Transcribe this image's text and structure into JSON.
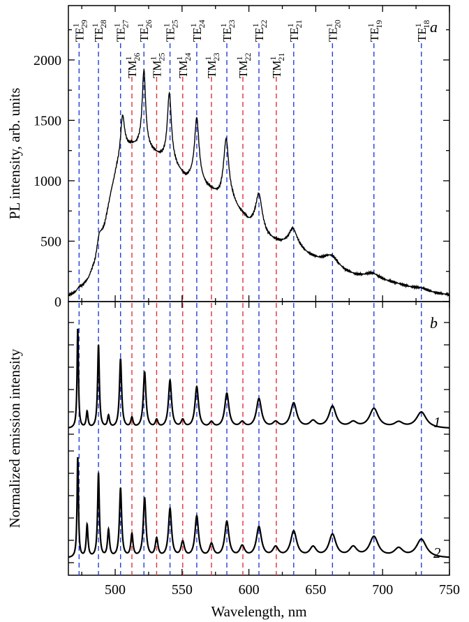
{
  "chart_data": [
    {
      "panel": "a",
      "type": "line",
      "xlabel": "Wavelength, nm",
      "ylabel": "PL intensity, arb. units",
      "xlim": [
        465,
        750
      ],
      "ylim": [
        0,
        2450
      ],
      "yticks": [
        0,
        500,
        1000,
        1500,
        2000
      ],
      "grid": false,
      "background": [
        [
          465,
          50
        ],
        [
          470,
          70
        ],
        [
          475,
          120
        ],
        [
          480,
          190
        ],
        [
          485,
          330
        ],
        [
          488,
          500
        ],
        [
          492,
          620
        ],
        [
          497,
          900
        ],
        [
          501,
          1080
        ],
        [
          504,
          1160
        ],
        [
          508,
          1250
        ],
        [
          512,
          1280
        ],
        [
          516,
          1280
        ],
        [
          520,
          1300
        ],
        [
          526,
          1250
        ],
        [
          532,
          1200
        ],
        [
          537,
          1170
        ],
        [
          542,
          1150
        ],
        [
          548,
          1070
        ],
        [
          553,
          1010
        ],
        [
          558,
          1010
        ],
        [
          563,
          990
        ],
        [
          568,
          940
        ],
        [
          573,
          900
        ],
        [
          578,
          860
        ],
        [
          583,
          880
        ],
        [
          588,
          820
        ],
        [
          592,
          750
        ],
        [
          596,
          700
        ],
        [
          600,
          640
        ],
        [
          604,
          610
        ],
        [
          609,
          560
        ],
        [
          614,
          520
        ],
        [
          618,
          500
        ],
        [
          623,
          480
        ],
        [
          628,
          470
        ],
        [
          633,
          470
        ],
        [
          638,
          430
        ],
        [
          645,
          380
        ],
        [
          652,
          350
        ],
        [
          658,
          340
        ],
        [
          665,
          300
        ],
        [
          672,
          250
        ],
        [
          680,
          215
        ],
        [
          688,
          200
        ],
        [
          695,
          190
        ],
        [
          702,
          170
        ],
        [
          710,
          150
        ],
        [
          720,
          120
        ],
        [
          730,
          95
        ],
        [
          740,
          70
        ],
        [
          750,
          55
        ]
      ],
      "peaks": [
        {
          "x": 473,
          "amp": 20,
          "width": 2
        },
        {
          "x": 488,
          "amp": 60,
          "width": 2
        },
        {
          "x": 505.5,
          "amp": 340,
          "width": 1.8
        },
        {
          "x": 521.5,
          "amp": 620,
          "width": 1.5
        },
        {
          "x": 540.5,
          "amp": 560,
          "width": 1.8
        },
        {
          "x": 561,
          "amp": 510,
          "width": 2
        },
        {
          "x": 583,
          "amp": 460,
          "width": 2.3
        },
        {
          "x": 607.5,
          "amp": 310,
          "width": 3
        },
        {
          "x": 633,
          "amp": 130,
          "width": 4
        },
        {
          "x": 662,
          "amp": 60,
          "width": 5
        },
        {
          "x": 692,
          "amp": 40,
          "width": 6
        },
        {
          "x": 729,
          "amp": 15,
          "width": 5
        }
      ]
    },
    {
      "panel": "b",
      "type": "line",
      "xlabel": "Wavelength, nm",
      "ylabel": "Normalized emission intensity",
      "xlim": [
        465,
        750
      ],
      "xticks": [
        500,
        550,
        600,
        650,
        700,
        750
      ],
      "yticks_unlabeled": true,
      "grid": false,
      "series": [
        {
          "curve": "1",
          "baseline": 0.05,
          "peaks": [
            {
              "x": 472,
              "amp": 0.95,
              "width": 0.6
            },
            {
              "x": 479,
              "amp": 0.15,
              "width": 0.8
            },
            {
              "x": 487.5,
              "amp": 0.77,
              "width": 0.8
            },
            {
              "x": 495,
              "amp": 0.11,
              "width": 0.9
            },
            {
              "x": 504,
              "amp": 0.64,
              "width": 1.0
            },
            {
              "x": 512.5,
              "amp": 0.09,
              "width": 1.0
            },
            {
              "x": 522,
              "amp": 0.52,
              "width": 1.2
            },
            {
              "x": 531,
              "amp": 0.07,
              "width": 1.2
            },
            {
              "x": 541,
              "amp": 0.44,
              "width": 1.4
            },
            {
              "x": 550.5,
              "amp": 0.07,
              "width": 1.5
            },
            {
              "x": 561,
              "amp": 0.38,
              "width": 1.6
            },
            {
              "x": 572,
              "amp": 0.05,
              "width": 1.8
            },
            {
              "x": 583.5,
              "amp": 0.32,
              "width": 1.9
            },
            {
              "x": 595,
              "amp": 0.05,
              "width": 2.2
            },
            {
              "x": 607.5,
              "amp": 0.27,
              "width": 2.3
            },
            {
              "x": 620,
              "amp": 0.05,
              "width": 2.6
            },
            {
              "x": 633.5,
              "amp": 0.23,
              "width": 2.8
            },
            {
              "x": 648,
              "amp": 0.06,
              "width": 3.0
            },
            {
              "x": 662.5,
              "amp": 0.2,
              "width": 3.2
            },
            {
              "x": 678,
              "amp": 0.05,
              "width": 3.5
            },
            {
              "x": 693.5,
              "amp": 0.18,
              "width": 4.0
            },
            {
              "x": 712,
              "amp": 0.05,
              "width": 4.0
            },
            {
              "x": 729,
              "amp": 0.15,
              "width": 4.5
            }
          ]
        },
        {
          "curve": "2",
          "baseline": 0.04,
          "peaks": [
            {
              "x": 472,
              "amp": 0.96,
              "width": 0.6
            },
            {
              "x": 479,
              "amp": 0.3,
              "width": 0.8
            },
            {
              "x": 487.5,
              "amp": 0.78,
              "width": 0.8
            },
            {
              "x": 495,
              "amp": 0.25,
              "width": 0.9
            },
            {
              "x": 504,
              "amp": 0.64,
              "width": 1.0
            },
            {
              "x": 512.5,
              "amp": 0.21,
              "width": 1.0
            },
            {
              "x": 522,
              "amp": 0.55,
              "width": 1.2
            },
            {
              "x": 531,
              "amp": 0.17,
              "width": 1.2
            },
            {
              "x": 541,
              "amp": 0.45,
              "width": 1.4
            },
            {
              "x": 550.5,
              "amp": 0.14,
              "width": 1.5
            },
            {
              "x": 561,
              "amp": 0.38,
              "width": 1.6
            },
            {
              "x": 572,
              "amp": 0.12,
              "width": 1.8
            },
            {
              "x": 583.5,
              "amp": 0.33,
              "width": 1.9
            },
            {
              "x": 595,
              "amp": 0.1,
              "width": 2.2
            },
            {
              "x": 607.5,
              "amp": 0.28,
              "width": 2.3
            },
            {
              "x": 620,
              "amp": 0.09,
              "width": 2.6
            },
            {
              "x": 633.5,
              "amp": 0.24,
              "width": 2.8
            },
            {
              "x": 648,
              "amp": 0.09,
              "width": 3.0
            },
            {
              "x": 662.5,
              "amp": 0.21,
              "width": 3.2
            },
            {
              "x": 678,
              "amp": 0.09,
              "width": 3.5
            },
            {
              "x": 693.5,
              "amp": 0.19,
              "width": 4.0
            },
            {
              "x": 712,
              "amp": 0.08,
              "width": 4.0
            },
            {
              "x": 729,
              "amp": 0.17,
              "width": 4.5
            }
          ]
        }
      ]
    }
  ],
  "modes": {
    "te_color": "#1f3fd8",
    "tm_color": "#e0303a",
    "te": [
      {
        "x": 473,
        "base": "TE",
        "sup": "1",
        "sub": "29"
      },
      {
        "x": 487.5,
        "base": "TE",
        "sup": "1",
        "sub": "28"
      },
      {
        "x": 504,
        "base": "TE",
        "sup": "1",
        "sub": "27"
      },
      {
        "x": 521.5,
        "base": "TE",
        "sup": "1",
        "sub": "26"
      },
      {
        "x": 541,
        "base": "TE",
        "sup": "1",
        "sub": "25"
      },
      {
        "x": 561,
        "base": "TE",
        "sup": "1",
        "sub": "24"
      },
      {
        "x": 583.5,
        "base": "TE",
        "sup": "1",
        "sub": "23"
      },
      {
        "x": 607.5,
        "base": "TE",
        "sup": "1",
        "sub": "22"
      },
      {
        "x": 633.5,
        "base": "TE",
        "sup": "1",
        "sub": "21"
      },
      {
        "x": 662.5,
        "base": "TE",
        "sup": "1",
        "sub": "20"
      },
      {
        "x": 693.5,
        "base": "TE",
        "sup": "1",
        "sub": "19"
      },
      {
        "x": 729,
        "base": "TE",
        "sup": "1",
        "sub": "18"
      }
    ],
    "tm": [
      {
        "x": 512.5,
        "base": "TM",
        "sup": "1",
        "sub": "26"
      },
      {
        "x": 531,
        "base": "TM",
        "sup": "1",
        "sub": "25"
      },
      {
        "x": 550.5,
        "base": "TM",
        "sup": "1",
        "sub": "24"
      },
      {
        "x": 572,
        "base": "TM",
        "sup": "1",
        "sub": "23"
      },
      {
        "x": 595.5,
        "base": "TM",
        "sup": "1",
        "sub": "22"
      },
      {
        "x": 620.5,
        "base": "TM",
        "sup": "1",
        "sub": "21"
      }
    ]
  },
  "labels": {
    "panel_a": "a",
    "panel_b": "b",
    "curve_1": "1",
    "curve_2": "2",
    "xlabel": "Wavelength, nm",
    "ylabel_a": "PL intensity, arb. units",
    "ylabel_b": "Normalized emission intensity"
  }
}
